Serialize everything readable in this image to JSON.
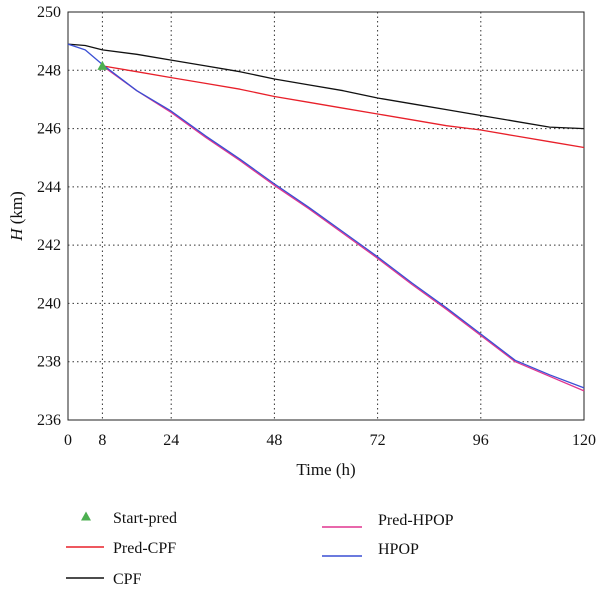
{
  "chart_data": {
    "type": "line",
    "title": "",
    "xlabel": "Time (h)",
    "ylabel_main": "H",
    "ylabel_unit": " (km)",
    "xlim": [
      0,
      120
    ],
    "ylim": [
      236,
      250
    ],
    "xticks": [
      0,
      8,
      24,
      48,
      72,
      96,
      120
    ],
    "yticks": [
      236,
      238,
      240,
      242,
      244,
      246,
      248,
      250
    ],
    "grid": "dotted",
    "legend_position": "below",
    "start_pred": {
      "name": "Start-pred",
      "x": 8,
      "y": 248.15,
      "color": "#4caf50"
    },
    "series": [
      {
        "name": "Pred-CPF",
        "color": "#e8202a",
        "x": [
          8,
          16,
          24,
          32,
          40,
          48,
          56,
          64,
          72,
          80,
          88,
          96,
          104,
          112,
          120
        ],
        "values": [
          248.15,
          247.95,
          247.75,
          247.55,
          247.35,
          247.1,
          246.9,
          246.7,
          246.5,
          246.3,
          246.1,
          245.95,
          245.75,
          245.55,
          245.35
        ]
      },
      {
        "name": "CPF",
        "color": "#111111",
        "x": [
          0,
          4,
          8,
          16,
          24,
          32,
          40,
          48,
          56,
          64,
          72,
          80,
          88,
          96,
          104,
          112,
          120
        ],
        "values": [
          248.9,
          248.85,
          248.7,
          248.55,
          248.35,
          248.15,
          247.95,
          247.7,
          247.5,
          247.3,
          247.05,
          246.85,
          246.65,
          246.45,
          246.25,
          246.05,
          246.0
        ]
      },
      {
        "name": "Pred-HPOP",
        "color": "#e0358f",
        "x": [
          8,
          16,
          24,
          32,
          40,
          48,
          56,
          64,
          72,
          80,
          88,
          96,
          104,
          112,
          120
        ],
        "values": [
          248.15,
          247.3,
          246.55,
          245.7,
          244.9,
          244.05,
          243.25,
          242.4,
          241.55,
          240.65,
          239.8,
          238.9,
          238.0,
          237.5,
          237.0
        ]
      },
      {
        "name": "HPOP",
        "color": "#3a4fd4",
        "x": [
          0,
          4,
          8,
          16,
          24,
          32,
          40,
          48,
          56,
          64,
          72,
          80,
          88,
          96,
          104,
          112,
          120
        ],
        "values": [
          248.9,
          248.7,
          248.2,
          247.3,
          246.6,
          245.75,
          244.95,
          244.1,
          243.3,
          242.45,
          241.6,
          240.7,
          239.85,
          238.95,
          238.05,
          237.55,
          237.1
        ]
      }
    ]
  }
}
